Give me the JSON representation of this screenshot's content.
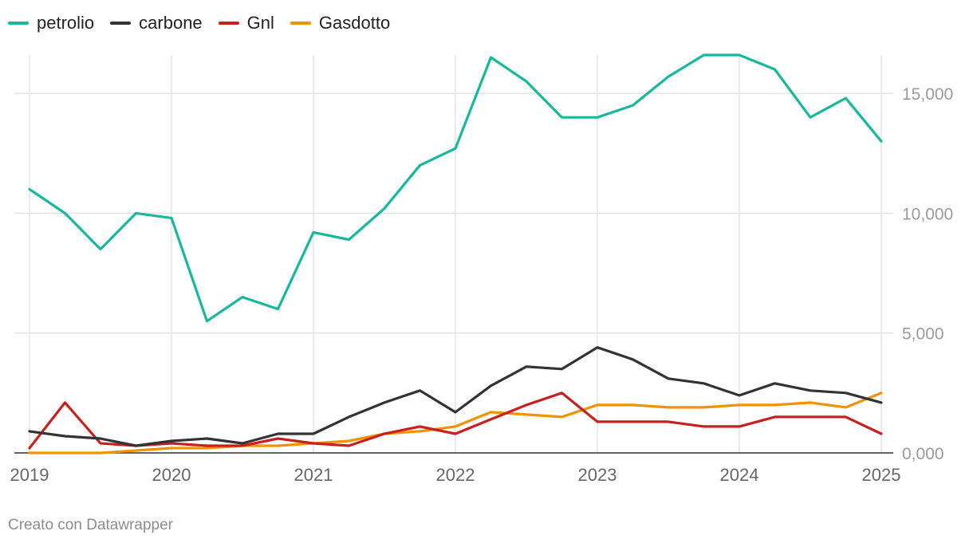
{
  "chart_data": {
    "type": "line",
    "title": "",
    "xlabel": "",
    "ylabel": "",
    "x": [
      2019.0,
      2019.25,
      2019.5,
      2019.75,
      2020.0,
      2020.25,
      2020.5,
      2020.75,
      2021.0,
      2021.25,
      2021.5,
      2021.75,
      2022.0,
      2022.25,
      2022.5,
      2022.75,
      2023.0,
      2023.25,
      2023.5,
      2023.75,
      2024.0,
      2024.25,
      2024.5,
      2024.75,
      2025.0
    ],
    "x_ticks": [
      2019,
      2020,
      2021,
      2022,
      2023,
      2024,
      2025
    ],
    "x_tick_labels": [
      "2019",
      "2020",
      "2021",
      "2022",
      "2023",
      "2024",
      "2025"
    ],
    "xlim": [
      2019,
      2025
    ],
    "ylim": [
      0,
      16600
    ],
    "y_ticks": [
      0,
      5000,
      10000,
      15000
    ],
    "y_tick_labels": [
      "0,000",
      "5,000",
      "10,000",
      "15,000"
    ],
    "grid": true,
    "legend_position": "top-left",
    "series": [
      {
        "name": "petrolio",
        "color": "#18b89b",
        "values": [
          11000,
          10000,
          8500,
          10000,
          9800,
          5500,
          6500,
          6000,
          9200,
          8900,
          10200,
          12000,
          12700,
          16500,
          15500,
          14000,
          14000,
          14500,
          15700,
          16600,
          16600,
          16000,
          14000,
          14800,
          13000
        ]
      },
      {
        "name": "carbone",
        "color": "#333333",
        "values": [
          900,
          700,
          600,
          300,
          500,
          600,
          400,
          800,
          800,
          1500,
          2100,
          2600,
          1700,
          2800,
          3600,
          3500,
          4400,
          3900,
          3100,
          2900,
          2400,
          2900,
          2600,
          2500,
          2100
        ]
      },
      {
        "name": "Gnl",
        "color": "#c8201e",
        "values": [
          200,
          2100,
          400,
          300,
          400,
          300,
          300,
          600,
          400,
          300,
          800,
          1100,
          800,
          1400,
          2000,
          2500,
          1300,
          1300,
          1300,
          1100,
          1100,
          1500,
          1500,
          1500,
          800
        ]
      },
      {
        "name": "Gasdotto",
        "color": "#f39200",
        "values": [
          0,
          0,
          0,
          100,
          200,
          200,
          300,
          300,
          400,
          500,
          800,
          900,
          1100,
          1700,
          1600,
          1500,
          2000,
          2000,
          1900,
          1900,
          2000,
          2000,
          2100,
          1900,
          2500
        ]
      }
    ]
  },
  "footer": {
    "credit": "Creato con Datawrapper"
  }
}
